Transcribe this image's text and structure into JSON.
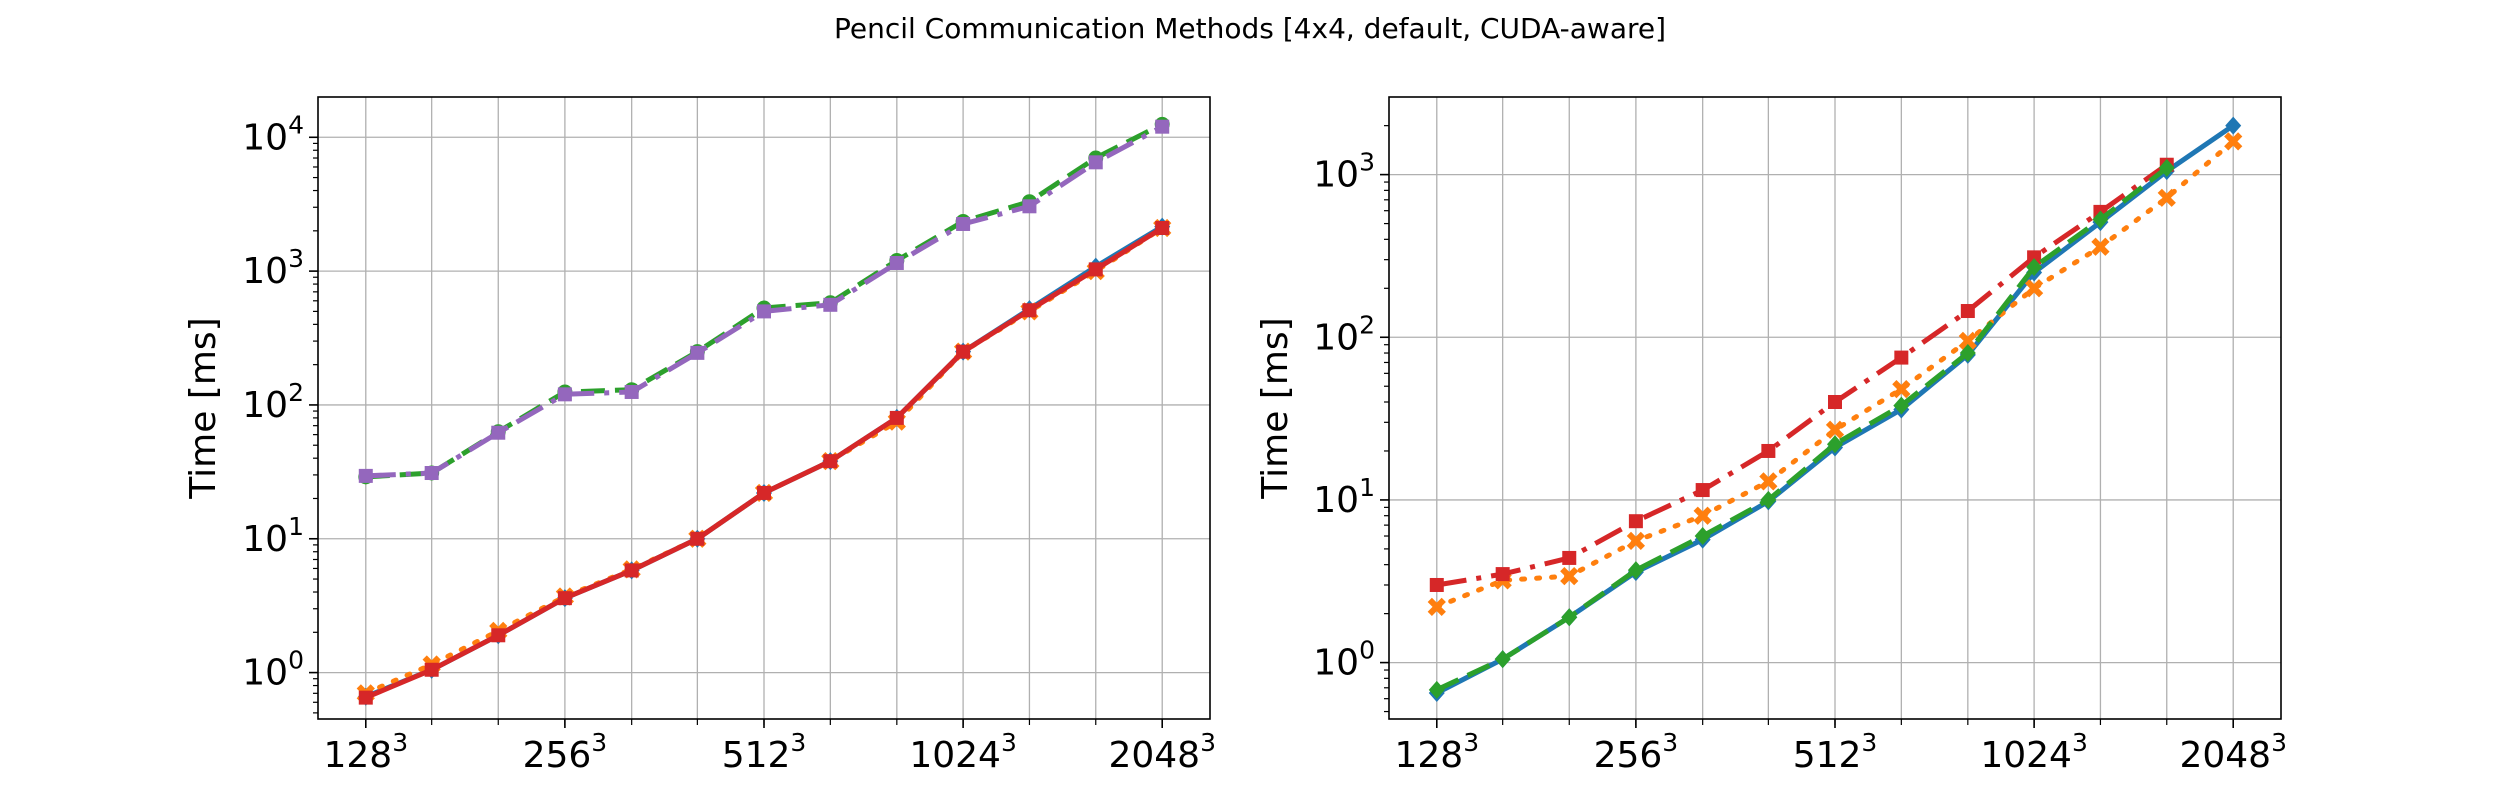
{
  "figure": {
    "title": "Pencil Communication Methods [4x4, default, CUDA-aware]"
  },
  "chart_data": [
    {
      "type": "line",
      "title": "",
      "xlabel": "",
      "ylabel": "Time [ms]",
      "yscale": "log",
      "xscale": "log2",
      "ylim": [
        0.45,
        20000
      ],
      "grid": true,
      "x": [
        128,
        161,
        203,
        256,
        323,
        406,
        512,
        645,
        813,
        1024,
        1290,
        1625,
        2048
      ],
      "xticks": [
        {
          "value": 128,
          "base": "128",
          "exp": "3"
        },
        {
          "value": 256,
          "base": "256",
          "exp": "3"
        },
        {
          "value": 512,
          "base": "512",
          "exp": "3"
        },
        {
          "value": 1024,
          "base": "1024",
          "exp": "3"
        },
        {
          "value": 2048,
          "base": "2048",
          "exp": "3"
        }
      ],
      "yticks": [
        {
          "value": 1,
          "base": "10",
          "exp": "0"
        },
        {
          "value": 10,
          "base": "10",
          "exp": "1"
        },
        {
          "value": 100,
          "base": "10",
          "exp": "2"
        },
        {
          "value": 1000,
          "base": "10",
          "exp": "3"
        },
        {
          "value": 10000,
          "base": "10",
          "exp": "4"
        }
      ],
      "series": [
        {
          "color": "#1f77b4",
          "dash": "solid",
          "marker": "diamond",
          "values": [
            0.66,
            1.05,
            1.9,
            3.6,
            5.8,
            10,
            22,
            38,
            80,
            250,
            520,
            1080,
            2150
          ]
        },
        {
          "color": "#ff7f0e",
          "dash": "dotted",
          "marker": "cross",
          "values": [
            0.7,
            1.15,
            2.05,
            3.7,
            5.9,
            10,
            22,
            38,
            75,
            250,
            500,
            1000,
            2100
          ]
        },
        {
          "color": "#2ca02c",
          "dash": "dashed",
          "marker": "circle",
          "values": [
            29,
            31,
            63,
            125,
            130,
            250,
            530,
            580,
            1200,
            2350,
            3300,
            7000,
            12500
          ]
        },
        {
          "color": "#9467bd",
          "dash": "dashdot",
          "marker": "square",
          "values": [
            29.5,
            31,
            62,
            120,
            125,
            245,
            500,
            560,
            1150,
            2250,
            3050,
            6500,
            12000
          ]
        },
        {
          "color": "#d62728",
          "dash": "solid",
          "marker": "square",
          "values": [
            0.65,
            1.05,
            1.9,
            3.6,
            5.8,
            10,
            22,
            38,
            80,
            250,
            510,
            1030,
            2100
          ]
        }
      ]
    },
    {
      "type": "line",
      "title": "",
      "xlabel": "",
      "ylabel": "Time [ms]",
      "yscale": "log",
      "xscale": "log2",
      "ylim": [
        0.45,
        3000
      ],
      "grid": true,
      "x": [
        128,
        161,
        203,
        256,
        323,
        406,
        512,
        645,
        813,
        1024,
        1290,
        1625,
        2048
      ],
      "xticks": [
        {
          "value": 128,
          "base": "128",
          "exp": "3"
        },
        {
          "value": 256,
          "base": "256",
          "exp": "3"
        },
        {
          "value": 512,
          "base": "512",
          "exp": "3"
        },
        {
          "value": 1024,
          "base": "1024",
          "exp": "3"
        },
        {
          "value": 2048,
          "base": "2048",
          "exp": "3"
        }
      ],
      "yticks": [
        {
          "value": 1,
          "base": "10",
          "exp": "0"
        },
        {
          "value": 10,
          "base": "10",
          "exp": "1"
        },
        {
          "value": 100,
          "base": "10",
          "exp": "2"
        },
        {
          "value": 1000,
          "base": "10",
          "exp": "3"
        }
      ],
      "series": [
        {
          "color": "#1f77b4",
          "dash": "solid",
          "marker": "diamond",
          "values": [
            0.65,
            1.05,
            1.9,
            3.6,
            5.7,
            9.8,
            21,
            36,
            78,
            250,
            510,
            1050,
            2000
          ]
        },
        {
          "color": "#ff7f0e",
          "dash": "dotted",
          "marker": "cross",
          "values": [
            2.2,
            3.2,
            3.4,
            5.6,
            8,
            13,
            27,
            48,
            95,
            200,
            360,
            720,
            1600
          ]
        },
        {
          "color": "#d62728",
          "dash": "dashdot",
          "marker": "square",
          "values": [
            3,
            3.5,
            4.4,
            7.4,
            11.5,
            20,
            40,
            75,
            145,
            310,
            590,
            1150,
            null
          ]
        },
        {
          "color": "#2ca02c",
          "dash": "dashed",
          "marker": "diamond",
          "values": [
            0.68,
            1.05,
            1.9,
            3.7,
            6,
            10,
            22,
            38,
            80,
            270,
            530,
            1100,
            null
          ]
        }
      ]
    }
  ]
}
